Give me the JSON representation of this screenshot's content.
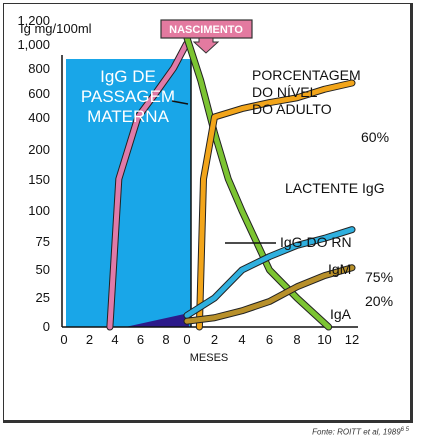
{
  "chart_data": {
    "type": "line",
    "ylabel": "Ig mg/100ml",
    "xlabel": "MESES",
    "y_ticks": [
      "0",
      "25",
      "50",
      "75",
      "100",
      "150",
      "200",
      "400",
      "600",
      "800",
      "1,000",
      "1,200"
    ],
    "x_ticks_before": [
      "0",
      "2",
      "4",
      "6",
      "8"
    ],
    "x_ticks_after": [
      "0",
      "2",
      "4",
      "6",
      "8",
      "10",
      "12"
    ],
    "y_scale": "nonlinear (piecewise)",
    "birth_label": "NASCIMENTO",
    "maternal_region_label_lines": [
      "IgG DE",
      "PASSAGEM",
      "MATERNA"
    ],
    "adult_percent_label_lines": [
      "PORCENTAGEM",
      "DO NÍVEL",
      "DO ADULTO"
    ],
    "series": [
      {
        "name": "IgG DE PASSAGEM MATERNA",
        "color": "#e07aa8",
        "period": "before",
        "points": [
          [
            3.6,
            0
          ],
          [
            4.3,
            150
          ],
          [
            5.8,
            400
          ],
          [
            7.2,
            600
          ],
          [
            8.6,
            800
          ],
          [
            9.6,
            1000
          ]
        ]
      },
      {
        "name": "IgG DO RN",
        "color": "#7cc432",
        "period": "after",
        "points": [
          [
            0,
            1050
          ],
          [
            1,
            700
          ],
          [
            2,
            300
          ],
          [
            3,
            150
          ],
          [
            4,
            100
          ],
          [
            6,
            50
          ],
          [
            8,
            25
          ],
          [
            10.3,
            0
          ]
        ]
      },
      {
        "name": "LACTENTE IgG",
        "color": "#f2a51a",
        "period": "after",
        "points": [
          [
            0.9,
            0
          ],
          [
            1.2,
            150
          ],
          [
            2,
            400
          ],
          [
            4,
            470
          ],
          [
            6,
            520
          ],
          [
            8,
            560
          ],
          [
            10,
            630
          ],
          [
            12,
            680
          ]
        ],
        "end_label": "60%"
      },
      {
        "name": "IgM",
        "color": "#2fb0df",
        "period": "after",
        "points": [
          [
            0,
            10
          ],
          [
            2,
            25
          ],
          [
            4,
            50
          ],
          [
            6,
            62
          ],
          [
            8,
            72
          ],
          [
            10,
            78
          ],
          [
            12,
            85
          ]
        ],
        "end_label": "75%"
      },
      {
        "name": "IgA",
        "color": "#b8902a",
        "period": "after",
        "points": [
          [
            0,
            5
          ],
          [
            2,
            8
          ],
          [
            4,
            14
          ],
          [
            6,
            22
          ],
          [
            8,
            35
          ],
          [
            10,
            45
          ],
          [
            12,
            52
          ]
        ],
        "end_label": "20%"
      }
    ],
    "fetal_wedge_color": "#2c1a8a",
    "maternal_region_color": "#19a6e8"
  },
  "source": "Fonte: ROITT et al, 1989",
  "source_ref": "6 5"
}
